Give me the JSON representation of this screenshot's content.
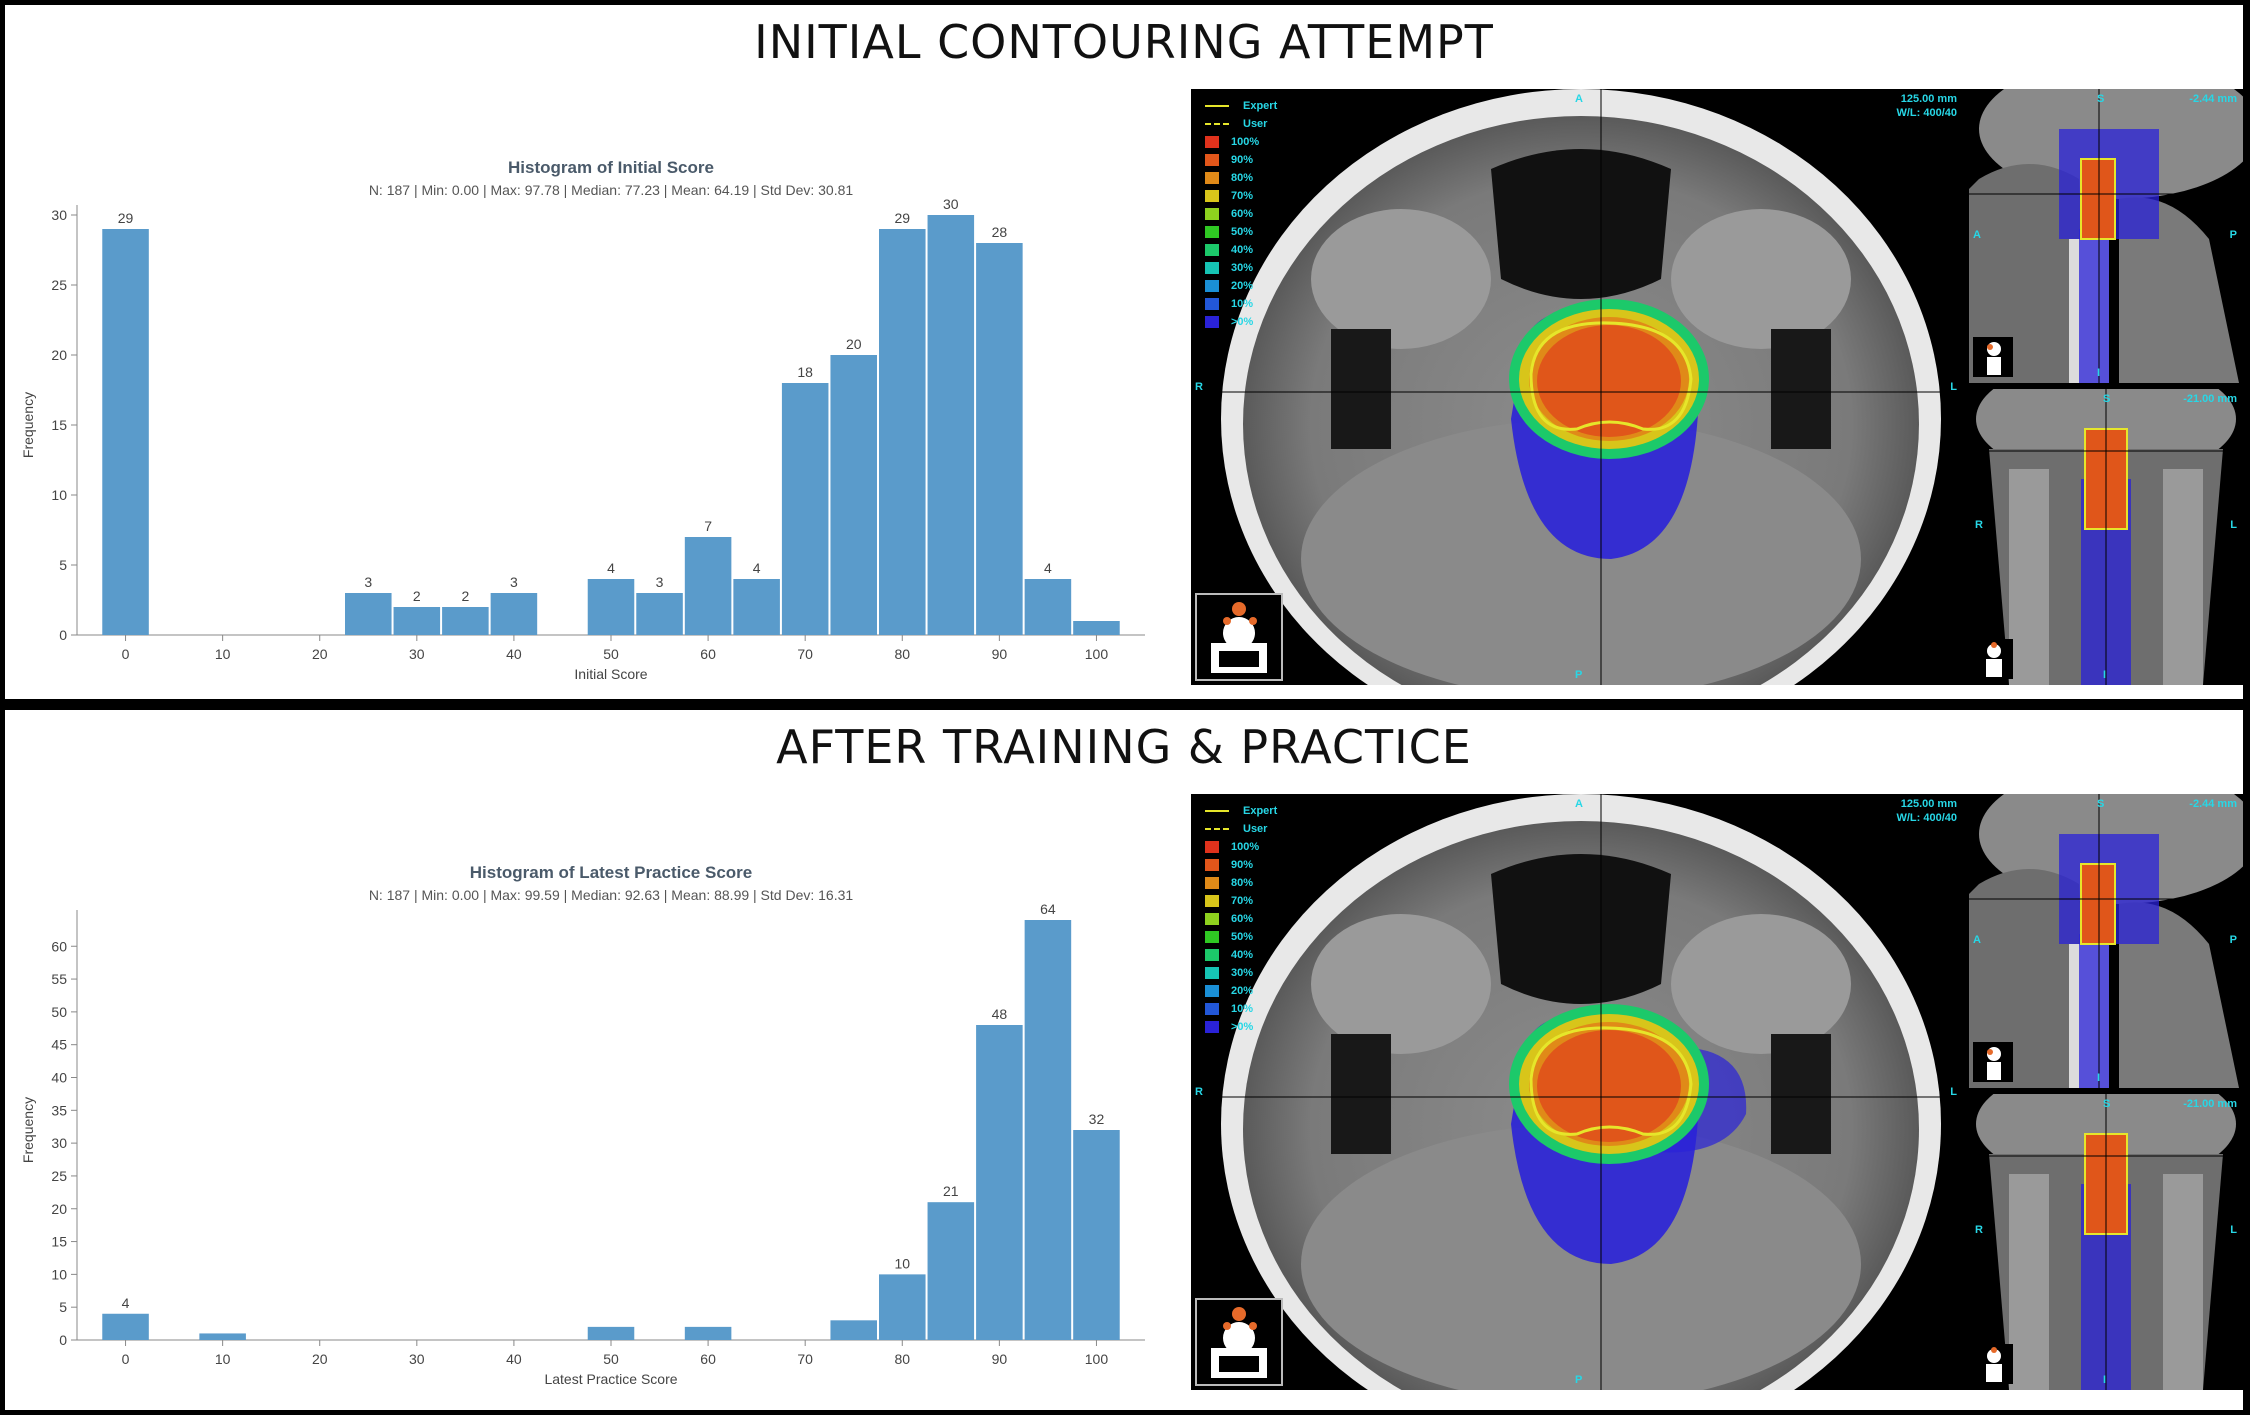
{
  "panels": [
    {
      "title": "INITIAL CONTOURING ATTEMPT",
      "chart_data": {
        "type": "bar",
        "title": "Histogram of Initial Score",
        "subtitle": "N: 187 | Min: 0.00 | Max: 97.78 | Median: 77.23 | Mean: 64.19 | Std Dev: 30.81",
        "xlabel": "Initial Score",
        "ylabel": "Frequency",
        "xlim": [
          -5,
          105
        ],
        "ylim": [
          0,
          30
        ],
        "xticks": [
          0,
          10,
          20,
          30,
          40,
          50,
          60,
          70,
          80,
          90,
          100
        ],
        "yticks": [
          0,
          5,
          10,
          15,
          20,
          25,
          30
        ],
        "bin_width": 5,
        "bins": [
          {
            "x0": -2.5,
            "count": 29,
            "label": "29"
          },
          {
            "x0": 22.5,
            "count": 3,
            "label": "3"
          },
          {
            "x0": 27.5,
            "count": 2,
            "label": "2"
          },
          {
            "x0": 32.5,
            "count": 2,
            "label": "2"
          },
          {
            "x0": 37.5,
            "count": 3,
            "label": "3"
          },
          {
            "x0": 47.5,
            "count": 4,
            "label": "4"
          },
          {
            "x0": 52.5,
            "count": 3,
            "label": "3"
          },
          {
            "x0": 57.5,
            "count": 7,
            "label": "7"
          },
          {
            "x0": 62.5,
            "count": 4,
            "label": "4"
          },
          {
            "x0": 67.5,
            "count": 18,
            "label": "18"
          },
          {
            "x0": 72.5,
            "count": 20,
            "label": "20"
          },
          {
            "x0": 77.5,
            "count": 29,
            "label": "29"
          },
          {
            "x0": 82.5,
            "count": 30,
            "label": "30"
          },
          {
            "x0": 87.5,
            "count": 28,
            "label": "28"
          },
          {
            "x0": 92.5,
            "count": 4,
            "label": "4"
          },
          {
            "x0": 97.5,
            "count": 1,
            "label": ""
          }
        ],
        "bar_color": "#5a9bcb"
      },
      "viewer": {
        "axial_lobe": false,
        "top_right_1": "125.00 mm",
        "top_right_2": "W/L: 400/40",
        "sag_value": "-2.44 mm",
        "cor_value": "-21.00 mm"
      }
    },
    {
      "title": "AFTER TRAINING & PRACTICE",
      "chart_data": {
        "type": "bar",
        "title": "Histogram of Latest Practice Score",
        "subtitle": "N: 187 | Min: 0.00 | Max: 99.59 | Median: 92.63 | Mean: 88.99 | Std Dev: 16.31",
        "xlabel": "Latest Practice Score",
        "ylabel": "Frequency",
        "xlim": [
          -5,
          105
        ],
        "ylim": [
          0,
          64
        ],
        "xticks": [
          0,
          10,
          20,
          30,
          40,
          50,
          60,
          70,
          80,
          90,
          100
        ],
        "yticks": [
          0,
          5,
          10,
          15,
          20,
          25,
          30,
          35,
          40,
          45,
          50,
          55,
          60
        ],
        "bin_width": 5,
        "bins": [
          {
            "x0": -2.5,
            "count": 4,
            "label": "4"
          },
          {
            "x0": 7.5,
            "count": 1,
            "label": ""
          },
          {
            "x0": 47.5,
            "count": 2,
            "label": ""
          },
          {
            "x0": 57.5,
            "count": 2,
            "label": ""
          },
          {
            "x0": 72.5,
            "count": 3,
            "label": ""
          },
          {
            "x0": 77.5,
            "count": 10,
            "label": "10"
          },
          {
            "x0": 82.5,
            "count": 21,
            "label": "21"
          },
          {
            "x0": 87.5,
            "count": 48,
            "label": "48"
          },
          {
            "x0": 92.5,
            "count": 64,
            "label": "64"
          },
          {
            "x0": 97.5,
            "count": 32,
            "label": "32"
          }
        ],
        "bar_color": "#5a9bcb"
      },
      "viewer": {
        "axial_lobe": true,
        "top_right_1": "125.00 mm",
        "top_right_2": "W/L: 400/40",
        "sag_value": "-2.44 mm",
        "cor_value": "-21.00 mm"
      }
    }
  ],
  "legend": {
    "expert": "Expert",
    "user": "User",
    "line_color": "#e6e62a",
    "items": [
      {
        "label": "100%",
        "color": "#e0321c"
      },
      {
        "label": "90%",
        "color": "#e2561a"
      },
      {
        "label": "80%",
        "color": "#e08a18"
      },
      {
        "label": "70%",
        "color": "#d8c51a"
      },
      {
        "label": "60%",
        "color": "#8ed11e"
      },
      {
        "label": "50%",
        "color": "#2fc923"
      },
      {
        "label": "40%",
        "color": "#1cc96a"
      },
      {
        "label": "30%",
        "color": "#16c4b4"
      },
      {
        "label": "20%",
        "color": "#1a8fd6"
      },
      {
        "label": "10%",
        "color": "#2257d8"
      },
      {
        "label": ">0%",
        "color": "#2a22d8"
      }
    ]
  },
  "orientation": {
    "axial": {
      "top": "A",
      "bottom": "P",
      "left": "R",
      "right": "L"
    },
    "sagittal": {
      "top": "S",
      "bottom": "I",
      "left": "A",
      "right": "P"
    },
    "coronal": {
      "top": "S",
      "bottom": "I",
      "left": "R",
      "right": "L"
    }
  }
}
